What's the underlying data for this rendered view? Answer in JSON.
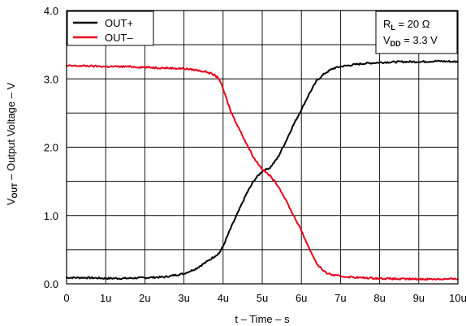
{
  "chart_data": {
    "type": "line",
    "xlabel": "t – Time – s",
    "ylabel_main": "V",
    "ylabel_sub": "OUT",
    "ylabel_rest": " – Output Voltage – V",
    "xlim": [
      0,
      10
    ],
    "ylim": [
      0,
      4
    ],
    "x_ticks": [
      0,
      1,
      2,
      3,
      4,
      5,
      6,
      7,
      8,
      9,
      10
    ],
    "x_tick_labels": [
      "0",
      "1u",
      "2u",
      "3u",
      "4u",
      "5u",
      "6u",
      "7u",
      "8u",
      "9u",
      "10u"
    ],
    "y_major_ticks": [
      0,
      1,
      2,
      3,
      4
    ],
    "y_tick_labels": [
      "0.0",
      "1.0",
      "2.0",
      "3.0",
      "4.0"
    ],
    "y_grid": [
      0,
      0.5,
      1,
      1.5,
      2,
      2.5,
      3,
      3.5,
      4
    ],
    "grid": true,
    "legend_position": "top-left",
    "series": [
      {
        "name": "OUT+",
        "color": "#000000",
        "x": [
          0,
          0.5,
          1,
          1.5,
          2,
          2.5,
          3,
          3.3,
          3.6,
          3.9,
          4.0,
          4.2,
          4.4,
          4.6,
          4.8,
          5.0,
          5.2,
          5.4,
          5.6,
          5.8,
          6.0,
          6.2,
          6.4,
          6.6,
          6.8,
          7.0,
          7.5,
          8.0,
          8.5,
          9.0,
          9.5,
          10.0
        ],
        "values": [
          0.09,
          0.09,
          0.08,
          0.08,
          0.09,
          0.1,
          0.15,
          0.22,
          0.33,
          0.45,
          0.55,
          0.82,
          1.07,
          1.32,
          1.52,
          1.65,
          1.7,
          1.85,
          2.08,
          2.33,
          2.55,
          2.78,
          2.98,
          3.08,
          3.15,
          3.18,
          3.22,
          3.24,
          3.25,
          3.25,
          3.26,
          3.25
        ]
      },
      {
        "name": "OUT–",
        "color": "#e8001c",
        "x": [
          0,
          0.5,
          1,
          1.5,
          2,
          2.5,
          3,
          3.3,
          3.6,
          3.8,
          3.9,
          4.0,
          4.2,
          4.4,
          4.6,
          4.8,
          5.0,
          5.2,
          5.4,
          5.6,
          5.8,
          6.0,
          6.2,
          6.4,
          6.6,
          6.8,
          7.0,
          7.5,
          8.0,
          8.5,
          9.0,
          9.5,
          10.0
        ],
        "values": [
          3.19,
          3.19,
          3.18,
          3.18,
          3.17,
          3.16,
          3.15,
          3.13,
          3.1,
          3.05,
          3.0,
          2.85,
          2.52,
          2.28,
          2.05,
          1.83,
          1.68,
          1.58,
          1.44,
          1.23,
          1.0,
          0.78,
          0.52,
          0.29,
          0.17,
          0.13,
          0.11,
          0.09,
          0.08,
          0.07,
          0.07,
          0.07,
          0.07
        ]
      }
    ],
    "annotation_lines": [
      {
        "main": "R",
        "sub": "L",
        "rest": " = 20 Ω"
      },
      {
        "main": "V",
        "sub": "DD",
        "rest": " = 3.3 V"
      }
    ]
  }
}
